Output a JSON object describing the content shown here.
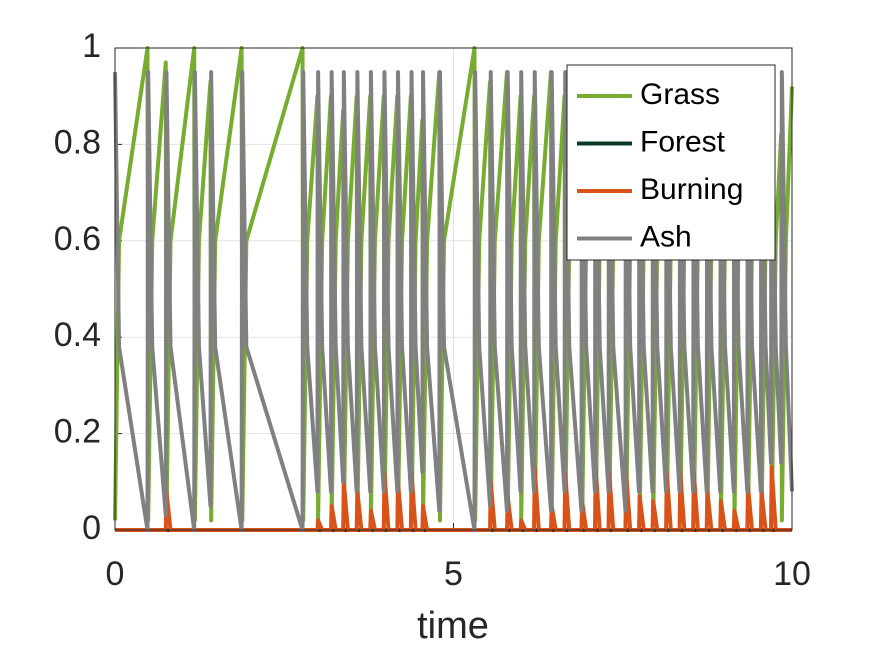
{
  "chart_data": {
    "type": "line",
    "x_label": "time",
    "xlim": [
      0,
      10
    ],
    "xticks": [
      0,
      5,
      10
    ],
    "ylim": [
      0,
      1
    ],
    "yticks": [
      0,
      0.2,
      0.4,
      0.6,
      0.8,
      1
    ],
    "grid": true,
    "legend": "upper right",
    "x": [
      0,
      0.06,
      0.48,
      0.49,
      0.55,
      0.75,
      0.76,
      0.82,
      1.17,
      1.18,
      1.24,
      1.41,
      1.42,
      1.48,
      1.87,
      1.88,
      1.94,
      2.77,
      2.78,
      2.84,
      2.99,
      3.0,
      3.06,
      3.19,
      3.2,
      3.26,
      3.37,
      3.38,
      3.44,
      3.57,
      3.58,
      3.64,
      3.77,
      3.78,
      3.84,
      3.97,
      3.98,
      4.04,
      4.17,
      4.18,
      4.24,
      4.37,
      4.38,
      4.44,
      4.54,
      4.55,
      4.61,
      4.79,
      4.8,
      4.86,
      5.31,
      5.32,
      5.38,
      5.54,
      5.55,
      5.61,
      5.79,
      5.8,
      5.86,
      5.99,
      6.0,
      6.06,
      6.19,
      6.2,
      6.26,
      6.44,
      6.45,
      6.51,
      6.64,
      6.65,
      6.71,
      6.89,
      6.9,
      6.96,
      7.09,
      7.1,
      7.16,
      7.29,
      7.3,
      7.36,
      7.54,
      7.55,
      7.61,
      7.74,
      7.75,
      7.81,
      7.94,
      7.95,
      8.01,
      8.14,
      8.15,
      8.21,
      8.34,
      8.35,
      8.41,
      8.54,
      8.55,
      8.61,
      8.74,
      8.75,
      8.81,
      8.94,
      8.95,
      9.01,
      9.14,
      9.15,
      9.21,
      9.34,
      9.35,
      9.41,
      9.54,
      9.55,
      9.61,
      9.69,
      9.7,
      9.76,
      9.84,
      9.85,
      9.91,
      10
    ],
    "series": [
      {
        "name": "Grass",
        "color": "#77ac30",
        "values": [
          0.02,
          0.6,
          1.0,
          0.02,
          0.6,
          0.97,
          0.02,
          0.6,
          1.0,
          0.02,
          0.6,
          0.93,
          0.02,
          0.6,
          1.0,
          0.02,
          0.6,
          1.0,
          0.02,
          0.6,
          0.9,
          0.02,
          0.6,
          0.9,
          0.02,
          0.6,
          0.87,
          0.02,
          0.6,
          0.9,
          0.02,
          0.6,
          0.9,
          0.02,
          0.6,
          0.9,
          0.02,
          0.6,
          0.9,
          0.02,
          0.6,
          0.9,
          0.02,
          0.6,
          0.85,
          0.02,
          0.6,
          0.95,
          0.02,
          0.6,
          1.0,
          0.02,
          0.6,
          0.93,
          0.02,
          0.6,
          0.95,
          0.02,
          0.6,
          0.9,
          0.02,
          0.6,
          0.9,
          0.02,
          0.6,
          0.95,
          0.02,
          0.6,
          0.9,
          0.02,
          0.6,
          0.95,
          0.02,
          0.6,
          0.9,
          0.02,
          0.6,
          0.9,
          0.02,
          0.6,
          0.95,
          0.02,
          0.6,
          0.9,
          0.02,
          0.6,
          0.9,
          0.02,
          0.6,
          0.9,
          0.02,
          0.6,
          0.9,
          0.02,
          0.6,
          0.9,
          0.02,
          0.6,
          0.9,
          0.02,
          0.6,
          0.9,
          0.02,
          0.6,
          0.9,
          0.02,
          0.6,
          0.9,
          0.02,
          0.6,
          0.9,
          0.02,
          0.6,
          0.82,
          0.02,
          0.6,
          0.82,
          0.02,
          0.6,
          0.92
        ]
      },
      {
        "name": "Forest",
        "color": "#0b3b24",
        "values": [
          0,
          0,
          0,
          0,
          0,
          0,
          0,
          0,
          0,
          0,
          0,
          0,
          0,
          0,
          0,
          0,
          0,
          0,
          0,
          0,
          0,
          0,
          0,
          0,
          0,
          0,
          0,
          0,
          0,
          0,
          0,
          0,
          0,
          0,
          0,
          0,
          0,
          0,
          0,
          0,
          0,
          0,
          0,
          0,
          0,
          0,
          0,
          0,
          0,
          0,
          0,
          0,
          0,
          0,
          0,
          0,
          0,
          0,
          0,
          0,
          0,
          0,
          0,
          0,
          0,
          0,
          0,
          0,
          0,
          0,
          0,
          0,
          0,
          0,
          0,
          0,
          0,
          0,
          0,
          0,
          0,
          0,
          0,
          0,
          0,
          0,
          0,
          0,
          0,
          0,
          0,
          0,
          0,
          0,
          0,
          0,
          0,
          0,
          0,
          0,
          0,
          0,
          0,
          0,
          0,
          0,
          0,
          0,
          0,
          0,
          0,
          0,
          0,
          0,
          0,
          0,
          0,
          0,
          0,
          0
        ]
      },
      {
        "name": "Burning",
        "color": "#d95319",
        "values": [
          0,
          0,
          0,
          0,
          0,
          0,
          0.08,
          0,
          0,
          0,
          0,
          0,
          0,
          0,
          0,
          0,
          0,
          0,
          0,
          0,
          0,
          0.02,
          0,
          0,
          0.05,
          0,
          0,
          0.1,
          0,
          0,
          0.08,
          0,
          0,
          0.04,
          0,
          0,
          0.12,
          0,
          0,
          0.1,
          0,
          0,
          0.12,
          0,
          0,
          0.05,
          0,
          0,
          0,
          0,
          0,
          0,
          0,
          0,
          0.1,
          0,
          0,
          0.07,
          0,
          0,
          0.02,
          0,
          0,
          0.13,
          0,
          0,
          0.05,
          0,
          0,
          0.12,
          0,
          0,
          0.06,
          0,
          0,
          0.13,
          0,
          0,
          0.12,
          0,
          0,
          0.12,
          0,
          0,
          0.07,
          0,
          0,
          0.06,
          0,
          0,
          0.12,
          0,
          0,
          0.12,
          0,
          0,
          0.12,
          0,
          0,
          0.08,
          0,
          0,
          0.06,
          0,
          0,
          0.04,
          0,
          0,
          0.09,
          0,
          0,
          0.08,
          0,
          0,
          0.13,
          0,
          0,
          0,
          0,
          0
        ]
      },
      {
        "name": "Ash",
        "color": "#808080",
        "values": [
          0.95,
          0.38,
          0.0,
          0.95,
          0.38,
          0.03,
          0.95,
          0.38,
          0.0,
          0.95,
          0.38,
          0.05,
          0.95,
          0.38,
          0.0,
          0.95,
          0.38,
          0.0,
          0.95,
          0.38,
          0.08,
          0.95,
          0.38,
          0.08,
          0.95,
          0.38,
          0.1,
          0.95,
          0.38,
          0.08,
          0.95,
          0.38,
          0.08,
          0.95,
          0.38,
          0.08,
          0.95,
          0.38,
          0.08,
          0.95,
          0.38,
          0.08,
          0.95,
          0.38,
          0.12,
          0.95,
          0.38,
          0.04,
          0.95,
          0.38,
          0.0,
          0.95,
          0.38,
          0.05,
          0.95,
          0.38,
          0.04,
          0.95,
          0.38,
          0.08,
          0.95,
          0.38,
          0.08,
          0.95,
          0.38,
          0.04,
          0.95,
          0.38,
          0.08,
          0.95,
          0.38,
          0.04,
          0.95,
          0.38,
          0.08,
          0.95,
          0.38,
          0.08,
          0.95,
          0.38,
          0.04,
          0.95,
          0.38,
          0.08,
          0.95,
          0.38,
          0.08,
          0.95,
          0.38,
          0.08,
          0.95,
          0.38,
          0.08,
          0.95,
          0.38,
          0.08,
          0.95,
          0.38,
          0.08,
          0.95,
          0.38,
          0.08,
          0.95,
          0.38,
          0.08,
          0.95,
          0.38,
          0.08,
          0.95,
          0.38,
          0.08,
          0.95,
          0.38,
          0.14,
          0.95,
          0.38,
          0.14,
          0.95,
          0.38,
          0.08
        ]
      }
    ]
  }
}
